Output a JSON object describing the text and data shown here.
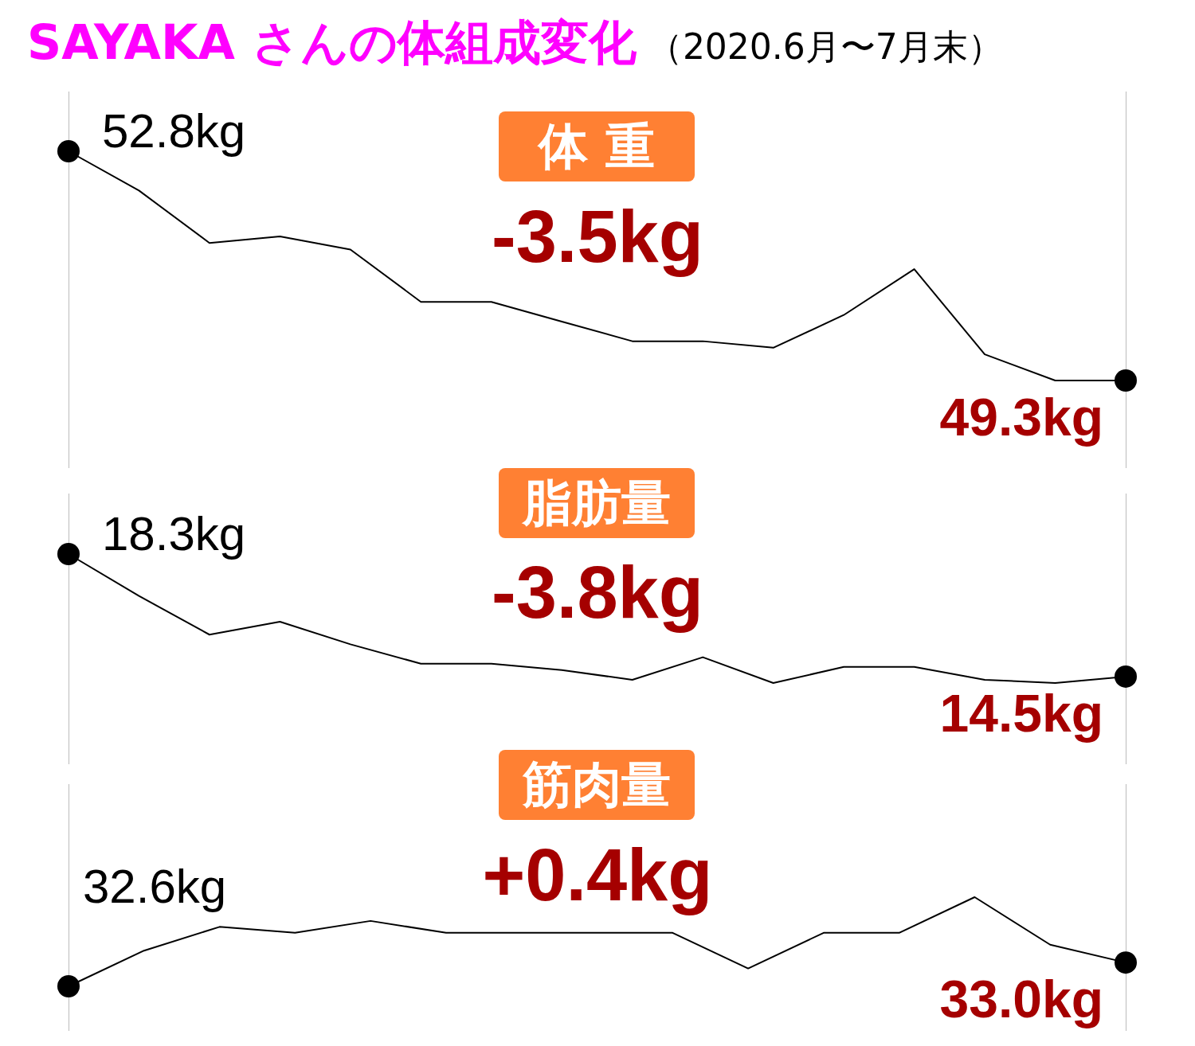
{
  "chart_data": [
    {
      "type": "line",
      "title": "SAYAKA さんの体組成変化",
      "subtitle": "（2020.6月〜7月末）",
      "annotations": [
        "体 重",
        "-3.5kg"
      ],
      "categories": [
        null,
        null,
        null,
        null,
        null,
        null,
        null,
        null,
        null,
        null,
        null,
        null,
        null,
        null,
        null,
        null
      ],
      "color": "#000000",
      "values": [
        52.8,
        52.2,
        51.4,
        51.5,
        51.3,
        50.5,
        50.5,
        50.2,
        49.9,
        49.9,
        49.8,
        50.3,
        51.0,
        49.7,
        49.3,
        49.3
      ],
      "value_labels": [
        "52.8kg",
        null,
        null,
        null,
        null,
        null,
        null,
        null,
        null,
        null,
        null,
        null,
        null,
        null,
        null,
        "49.3kg"
      ]
    },
    {
      "type": "line",
      "annotations": [
        "脂肪量",
        "-3.8kg"
      ],
      "categories": [
        null,
        null,
        null,
        null,
        null,
        null,
        null,
        null,
        null,
        null,
        null,
        null,
        null,
        null,
        null,
        null
      ],
      "color": "#000000",
      "values": [
        18.3,
        17.0,
        15.8,
        16.2,
        15.5,
        14.9,
        14.9,
        14.7,
        14.4,
        15.1,
        14.3,
        14.8,
        14.8,
        14.4,
        14.3,
        14.5
      ],
      "value_labels": [
        "18.3kg",
        null,
        null,
        null,
        null,
        null,
        null,
        null,
        null,
        null,
        null,
        null,
        null,
        null,
        null,
        "14.5kg"
      ]
    },
    {
      "type": "line",
      "annotations": [
        "筋肉量",
        "+0.4kg"
      ],
      "categories": [
        null,
        null,
        null,
        null,
        null,
        null,
        null,
        null,
        null,
        null,
        null,
        null,
        null,
        null,
        null
      ],
      "color": "#000000",
      "values": [
        32.6,
        33.2,
        33.6,
        33.5,
        33.7,
        33.5,
        33.5,
        33.5,
        33.5,
        32.9,
        33.5,
        33.5,
        34.1,
        33.3,
        33.0
      ],
      "value_labels": [
        "32.6kg",
        null,
        null,
        null,
        null,
        null,
        null,
        null,
        null,
        null,
        null,
        null,
        null,
        null,
        "33.0kg"
      ]
    }
  ]
}
